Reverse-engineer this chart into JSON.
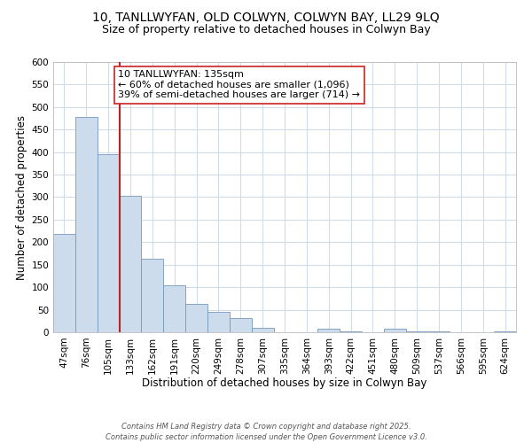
{
  "title": "10, TANLLWYFAN, OLD COLWYN, COLWYN BAY, LL29 9LQ",
  "subtitle": "Size of property relative to detached houses in Colwyn Bay",
  "xlabel": "Distribution of detached houses by size in Colwyn Bay",
  "ylabel": "Number of detached properties",
  "bar_color": "#ccdcec",
  "bar_edge_color": "#7799bb",
  "background_color": "#ffffff",
  "grid_color": "#d0dde8",
  "categories": [
    "47sqm",
    "76sqm",
    "105sqm",
    "133sqm",
    "162sqm",
    "191sqm",
    "220sqm",
    "249sqm",
    "278sqm",
    "307sqm",
    "335sqm",
    "364sqm",
    "393sqm",
    "422sqm",
    "451sqm",
    "480sqm",
    "509sqm",
    "537sqm",
    "566sqm",
    "595sqm",
    "624sqm"
  ],
  "values": [
    218,
    478,
    395,
    303,
    163,
    105,
    63,
    46,
    32,
    10,
    0,
    0,
    8,
    2,
    0,
    7,
    2,
    1,
    0,
    0,
    1
  ],
  "ylim": [
    0,
    600
  ],
  "yticks": [
    0,
    50,
    100,
    150,
    200,
    250,
    300,
    350,
    400,
    450,
    500,
    550,
    600
  ],
  "vline_color": "#bb2222",
  "annotation_title": "10 TANLLWYFAN: 135sqm",
  "annotation_line1": "← 60% of detached houses are smaller (1,096)",
  "annotation_line2": "39% of semi-detached houses are larger (714) →",
  "annotation_box_color": "#ffffff",
  "annotation_box_edge": "#cc2222",
  "footer_line1": "Contains HM Land Registry data © Crown copyright and database right 2025.",
  "footer_line2": "Contains public sector information licensed under the Open Government Licence v3.0.",
  "title_fontsize": 10,
  "subtitle_fontsize": 9,
  "axis_label_fontsize": 8.5,
  "tick_fontsize": 7.5,
  "annotation_fontsize": 8,
  "footer_fontsize": 6
}
